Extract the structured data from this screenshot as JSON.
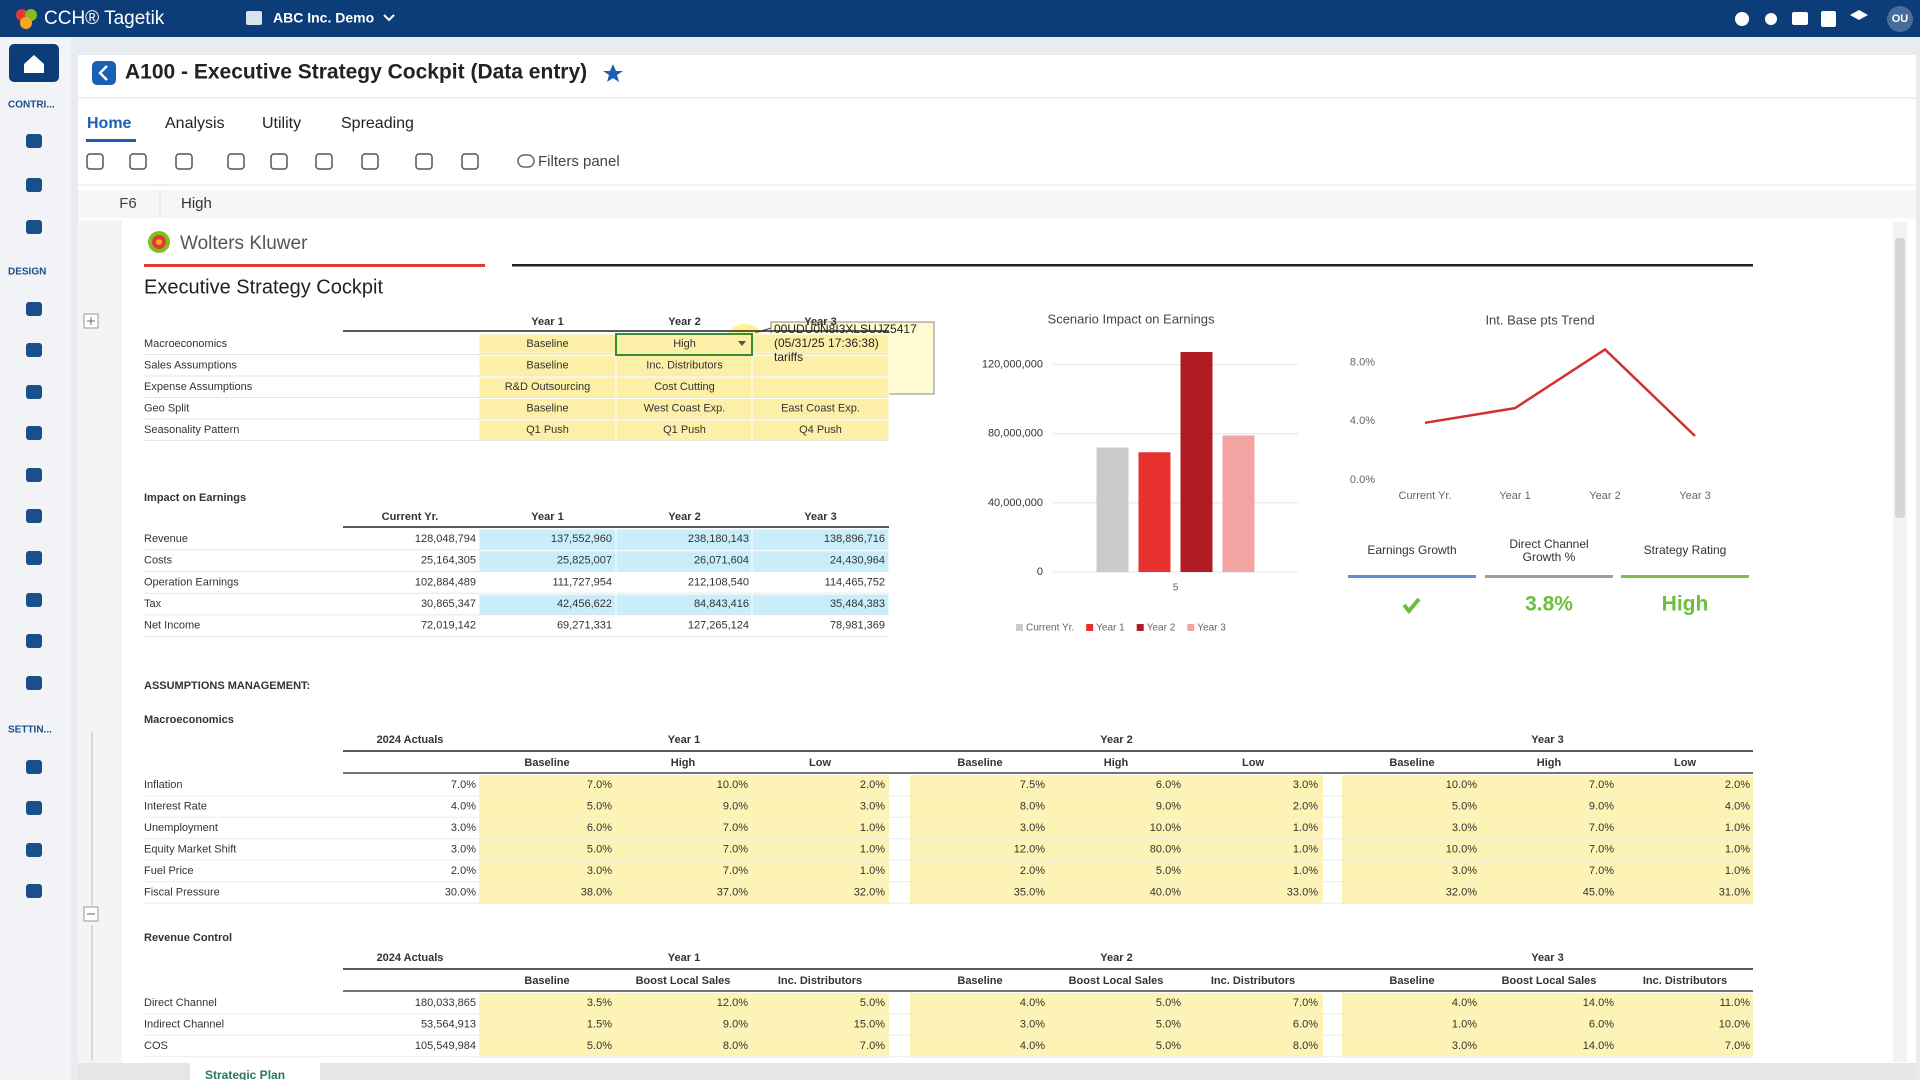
{
  "app": {
    "brand": "CCH® Tagetik",
    "environment": "ABC Inc. Demo",
    "user": "OU",
    "sidebar": [
      "CONTRI...",
      "DESIGN",
      "SETTIN..."
    ]
  },
  "page": {
    "title": "A100 - Executive Strategy Cockpit (Data entry)",
    "tabs": [
      "Home",
      "Analysis",
      "Utility",
      "Spreading"
    ],
    "toolbar": {
      "filters": "Filters panel"
    },
    "cell": {
      "ref": "F6",
      "value": "High"
    },
    "sheet_tab": "Strategic Plan"
  },
  "sheet": {
    "logo": "Wolters Kluwer",
    "title": "Executive Strategy Cockpit",
    "scenarios": {
      "fill": "#fcf0a8",
      "columns": [
        "Year 1",
        "Year 2",
        "Year 3"
      ],
      "rows": [
        {
          "label": "Macroeconomics",
          "values": [
            "Baseline",
            "High",
            null
          ]
        },
        {
          "label": "Sales Assumptions",
          "values": [
            "Baseline",
            "Inc. Distributors",
            null
          ]
        },
        {
          "label": "Expense Assumptions",
          "values": [
            "R&D Outsourcing",
            "Cost Cutting",
            null
          ]
        },
        {
          "label": "Geo Split",
          "values": [
            "Baseline",
            "West Coast Exp.",
            "East Coast Exp."
          ]
        },
        {
          "label": "Seasonality Pattern",
          "values": [
            "Q1 Push",
            "Q1 Push",
            "Q4 Push"
          ]
        }
      ]
    },
    "tooltip": [
      "00UDU0N8I3XLSUJZ5417",
      "(05/31/25 17:36:38)",
      "tariffs"
    ],
    "impact": {
      "title": "Impact on Earnings",
      "columns": [
        "Current Yr.",
        "Year 1",
        "Year 2",
        "Year 3"
      ],
      "rows": [
        {
          "label": "Revenue",
          "fill": "#c9eefa",
          "values": [
            "128,048,794",
            "137,552,960",
            "238,180,143",
            "138,896,716"
          ]
        },
        {
          "label": "Costs",
          "fill": "#c9eefa",
          "values": [
            "25,164,305",
            "25,825,007",
            "26,071,604",
            "24,430,964"
          ]
        },
        {
          "label": "Operation Earnings",
          "fill": "#ffffff",
          "values": [
            "102,884,489",
            "111,727,954",
            "212,108,540",
            "114,465,752"
          ]
        },
        {
          "label": "Tax",
          "fill": "#c9eefa",
          "values": [
            "30,865,347",
            "42,456,622",
            "84,843,416",
            "35,484,383"
          ]
        },
        {
          "label": "Net Income",
          "fill": "#ffffff",
          "values": [
            "72,019,142",
            "69,271,331",
            "127,265,124",
            "78,981,369"
          ]
        }
      ]
    },
    "kpis": [
      {
        "label": [
          "Earnings Growth"
        ],
        "color": "#5b8fd0"
      },
      {
        "label": [
          "Direct Channel",
          "Growth %"
        ],
        "value": "3.8%",
        "color": "#9e9e9e"
      },
      {
        "label": [
          "Strategy Rating"
        ],
        "value": "High",
        "color": "#7cc04a"
      }
    ],
    "assumptions_title": "ASSUMPTIONS MANAGEMENT:",
    "tables": [
      {
        "title": "Macroeconomics",
        "actuals": "2024 Actuals",
        "fill": "#fcf3b4",
        "groups": [
          {
            "name": "Year 1",
            "columns": [
              "Baseline",
              "High",
              "Low"
            ]
          },
          {
            "name": "Year 2",
            "columns": [
              "Baseline",
              "High",
              "Low"
            ]
          },
          {
            "name": "Year 3",
            "columns": [
              "Baseline",
              "High",
              "Low"
            ]
          }
        ],
        "rows": [
          {
            "label": "Inflation",
            "actual": "7.0%",
            "values": [
              "7.0%",
              "10.0%",
              "2.0%",
              "7.5%",
              "6.0%",
              "3.0%",
              "10.0%",
              "7.0%",
              "2.0%"
            ]
          },
          {
            "label": "Interest Rate",
            "actual": "4.0%",
            "values": [
              "5.0%",
              "9.0%",
              "3.0%",
              "8.0%",
              "9.0%",
              "2.0%",
              "5.0%",
              "9.0%",
              "4.0%"
            ]
          },
          {
            "label": "Unemployment",
            "actual": "3.0%",
            "values": [
              "6.0%",
              "7.0%",
              "1.0%",
              "3.0%",
              "10.0%",
              "1.0%",
              "3.0%",
              "7.0%",
              "1.0%"
            ]
          },
          {
            "label": "Equity Market Shift",
            "actual": "3.0%",
            "values": [
              "5.0%",
              "7.0%",
              "1.0%",
              "12.0%",
              "80.0%",
              "1.0%",
              "10.0%",
              "7.0%",
              "1.0%"
            ]
          },
          {
            "label": "Fuel Price",
            "actual": "2.0%",
            "values": [
              "3.0%",
              "7.0%",
              "1.0%",
              "2.0%",
              "5.0%",
              "1.0%",
              "3.0%",
              "7.0%",
              "1.0%"
            ]
          },
          {
            "label": "Fiscal Pressure",
            "actual": "30.0%",
            "values": [
              "38.0%",
              "37.0%",
              "32.0%",
              "35.0%",
              "40.0%",
              "33.0%",
              "32.0%",
              "45.0%",
              "31.0%"
            ]
          }
        ]
      },
      {
        "title": "Revenue Control",
        "actuals": "2024 Actuals",
        "fill": "#fcf3b4",
        "groups": [
          {
            "name": "Year 1",
            "columns": [
              "Baseline",
              "Boost Local Sales",
              "Inc. Distributors"
            ]
          },
          {
            "name": "Year 2",
            "columns": [
              "Baseline",
              "Boost Local Sales",
              "Inc. Distributors"
            ]
          },
          {
            "name": "Year 3",
            "columns": [
              "Baseline",
              "Boost Local Sales",
              "Inc. Distributors"
            ]
          }
        ],
        "rows": [
          {
            "label": "Direct Channel",
            "actual": "180,033,865",
            "values": [
              "3.5%",
              "12.0%",
              "5.0%",
              "4.0%",
              "5.0%",
              "7.0%",
              "4.0%",
              "14.0%",
              "11.0%"
            ]
          },
          {
            "label": "Indirect Channel",
            "actual": "53,564,913",
            "values": [
              "1.5%",
              "9.0%",
              "15.0%",
              "3.0%",
              "5.0%",
              "6.0%",
              "1.0%",
              "6.0%",
              "10.0%"
            ]
          },
          {
            "label": "COS",
            "actual": "105,549,984",
            "values": [
              "5.0%",
              "8.0%",
              "7.0%",
              "4.0%",
              "5.0%",
              "8.0%",
              "3.0%",
              "14.0%",
              "7.0%"
            ]
          }
        ]
      }
    ]
  },
  "chart_data": [
    {
      "type": "bar",
      "title": "Scenario Impact on Earnings",
      "categories": [
        "5"
      ],
      "series": [
        {
          "name": "Current Yr.",
          "color": "#cbcbcb",
          "values": [
            72019142
          ]
        },
        {
          "name": "Year 1",
          "color": "#e8312f",
          "values": [
            69271331
          ]
        },
        {
          "name": "Year 2",
          "color": "#b01c22",
          "values": [
            127265124
          ]
        },
        {
          "name": "Year 3",
          "color": "#f4a3a3",
          "values": [
            78981369
          ]
        }
      ],
      "ylim": [
        0,
        140000000
      ],
      "yticks": [
        0,
        {
          "value": 40000000,
          "label": "40,000,000"
        },
        {
          "value": 80000000,
          "label": "80,000,000"
        },
        {
          "value": 120000000,
          "label": "120,000,000"
        }
      ],
      "grid": true,
      "legend": "bottom"
    },
    {
      "type": "line",
      "title": "Int. Base pts Trend",
      "categories": [
        "Current Yr.",
        "Year 1",
        "Year 2",
        "Year 3"
      ],
      "values": [
        3.9,
        4.9,
        8.9,
        3.0
      ],
      "color": "#d32f2f",
      "ylim": [
        0,
        9
      ],
      "yticks": [
        {
          "value": 0,
          "label": "0.0%"
        },
        {
          "value": 4,
          "label": "4.0%"
        },
        {
          "value": 8,
          "label": "8.0%"
        }
      ],
      "grid": false
    }
  ]
}
